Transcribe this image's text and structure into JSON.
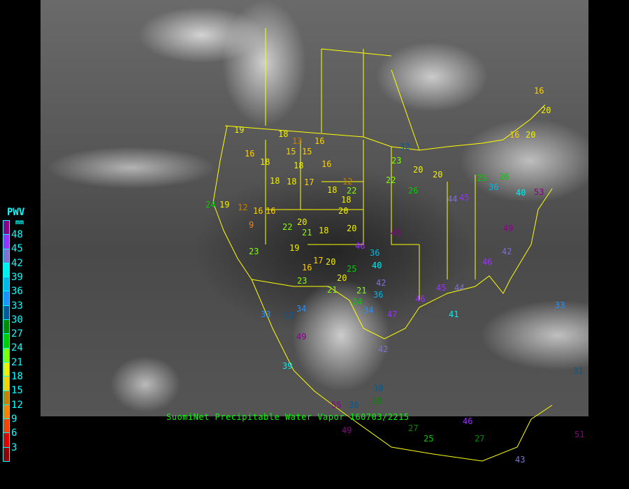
{
  "caption": "SuomiNet Precipitable Water Vapor 160703/2215",
  "legend": {
    "title": "PWV",
    "unit": "mm",
    "labels": [
      "48",
      "45",
      "42",
      "39",
      "36",
      "33",
      "30",
      "27",
      "24",
      "21",
      "18",
      "15",
      "12",
      "9",
      "6",
      "3"
    ],
    "colors": [
      "#8b008b",
      "#9a30ff",
      "#8070d0",
      "#00f0f0",
      "#00b8e8",
      "#2090ff",
      "#005a96",
      "#008a00",
      "#00cc00",
      "#80ff00",
      "#f0f000",
      "#ffd000",
      "#c88000",
      "#ff8000",
      "#ff4000",
      "#e00000",
      "#900000"
    ]
  },
  "stations": [
    "19",
    "16",
    "18",
    "18",
    "13",
    "15",
    "15",
    "16",
    "16",
    "18",
    "18",
    "18",
    "17",
    "18",
    "12",
    "22",
    "18",
    "16",
    "16",
    "24",
    "19",
    "12",
    "9",
    "20",
    "22",
    "21",
    "18",
    "20",
    "20",
    "19",
    "23",
    "16",
    "17",
    "20",
    "21",
    "23",
    "20",
    "25",
    "21",
    "24",
    "36",
    "34",
    "32",
    "33",
    "34",
    "40",
    "36",
    "42",
    "47",
    "49",
    "42",
    "39",
    "30",
    "28",
    "27",
    "25",
    "27",
    "46",
    "43",
    "51",
    "41",
    "42",
    "46",
    "49",
    "53",
    "40",
    "36",
    "25",
    "26",
    "22",
    "26",
    "23",
    "32",
    "20",
    "20",
    "16",
    "20",
    "20",
    "16",
    "33",
    "31",
    "45",
    "44",
    "48",
    "46",
    "55",
    "30",
    "49",
    "46",
    "45",
    "44"
  ]
}
